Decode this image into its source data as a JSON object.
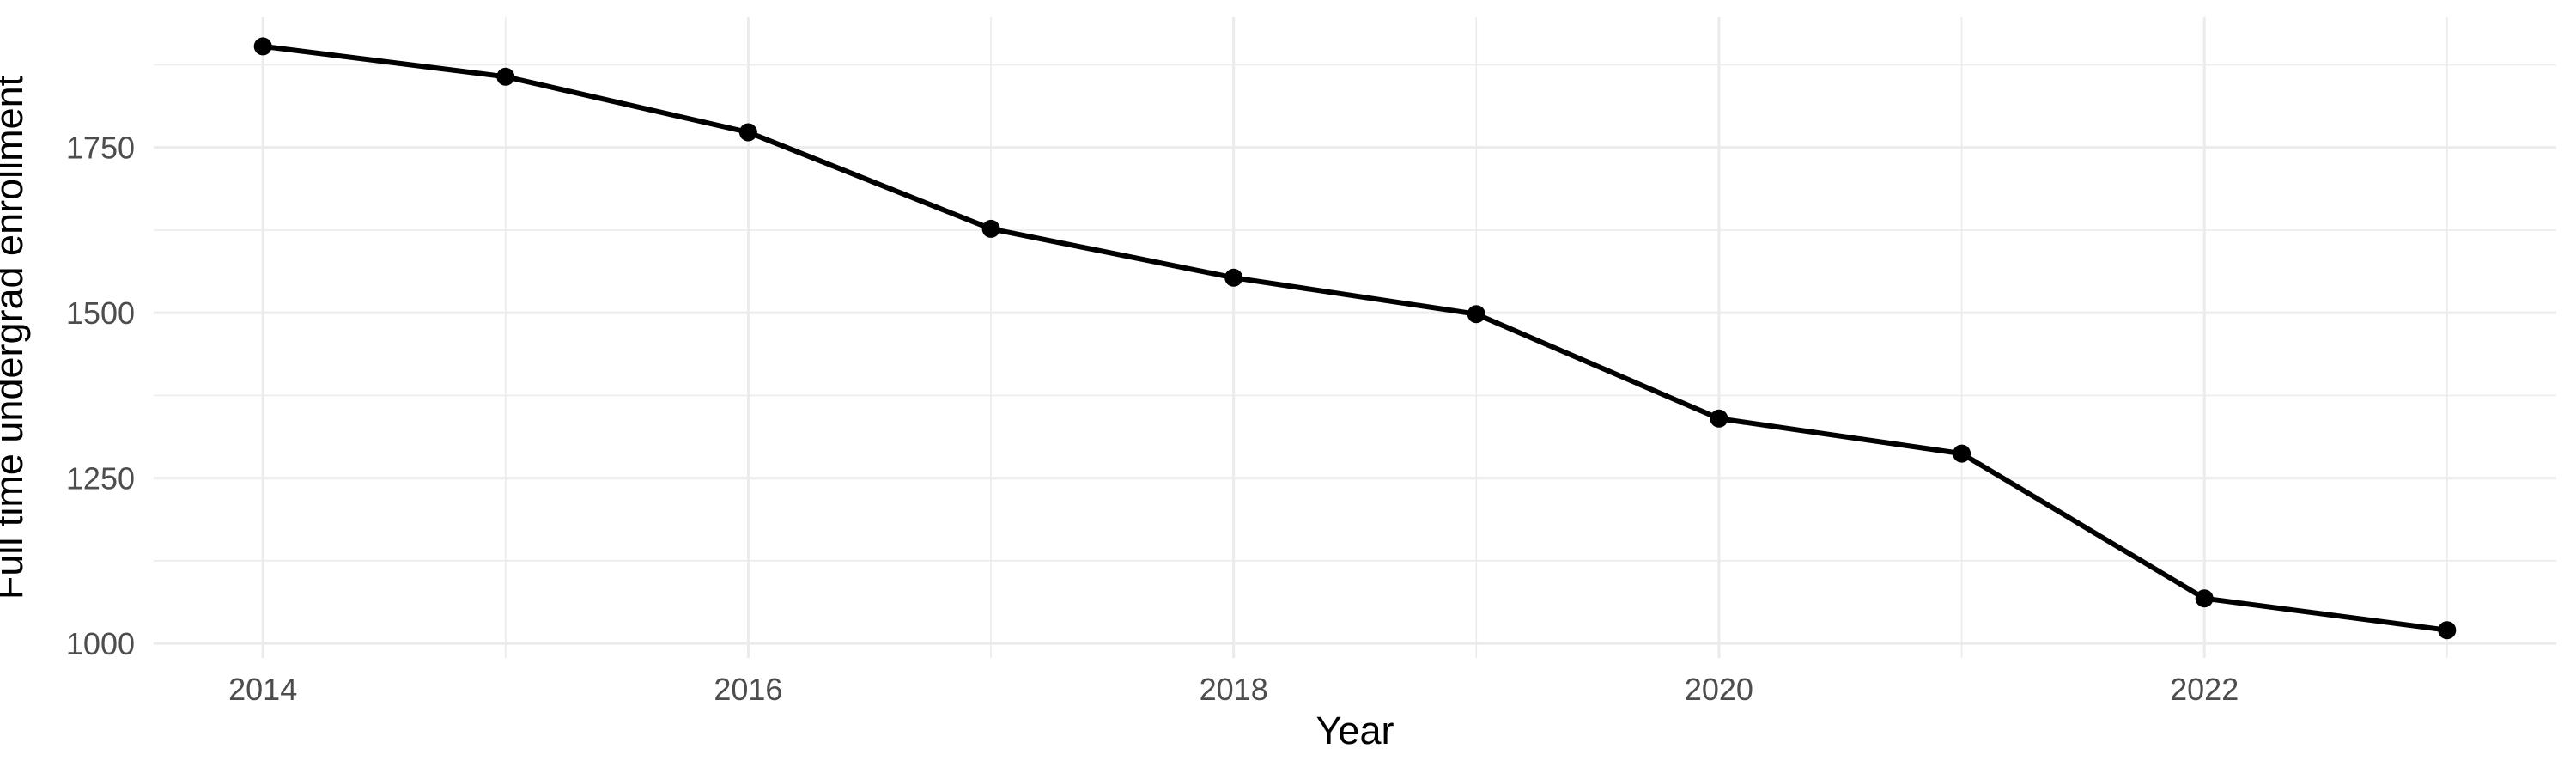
{
  "figure": {
    "background": "#FFFFFF"
  },
  "chart_data": {
    "type": "line",
    "title": "",
    "xlabel": "Year",
    "ylabel": "Full time undergrad enrollment",
    "x": [
      2014,
      2015,
      2016,
      2017,
      2018,
      2019,
      2020,
      2021,
      2022,
      2023
    ],
    "series": [
      {
        "name": "Full time undergrad enrollment",
        "values": [
          1903,
          1857,
          1773,
          1627,
          1553,
          1498,
          1340,
          1287,
          1068,
          1020
        ]
      }
    ],
    "xlim": [
      2013.55,
      2023.45
    ],
    "ylim": [
      978,
      1947
    ],
    "x_major_ticks": [
      2014,
      2016,
      2018,
      2020,
      2022
    ],
    "x_minor_ticks": [
      2015,
      2017,
      2019,
      2021,
      2023
    ],
    "y_major_ticks": [
      1000,
      1250,
      1500,
      1750
    ],
    "y_minor_ticks": [
      1125,
      1375,
      1625,
      1875
    ],
    "grid": "major-and-minor",
    "legend": "none",
    "style": {
      "line_color": "#000000",
      "point_color": "#000000",
      "line_width": 6,
      "point_radius": 10.5,
      "grid_color": "#EBEBEB",
      "grid_major_width": 3,
      "grid_minor_width": 1.6,
      "tick_label_color": "#4D4D4D",
      "axis_title_color": "#000000"
    }
  }
}
